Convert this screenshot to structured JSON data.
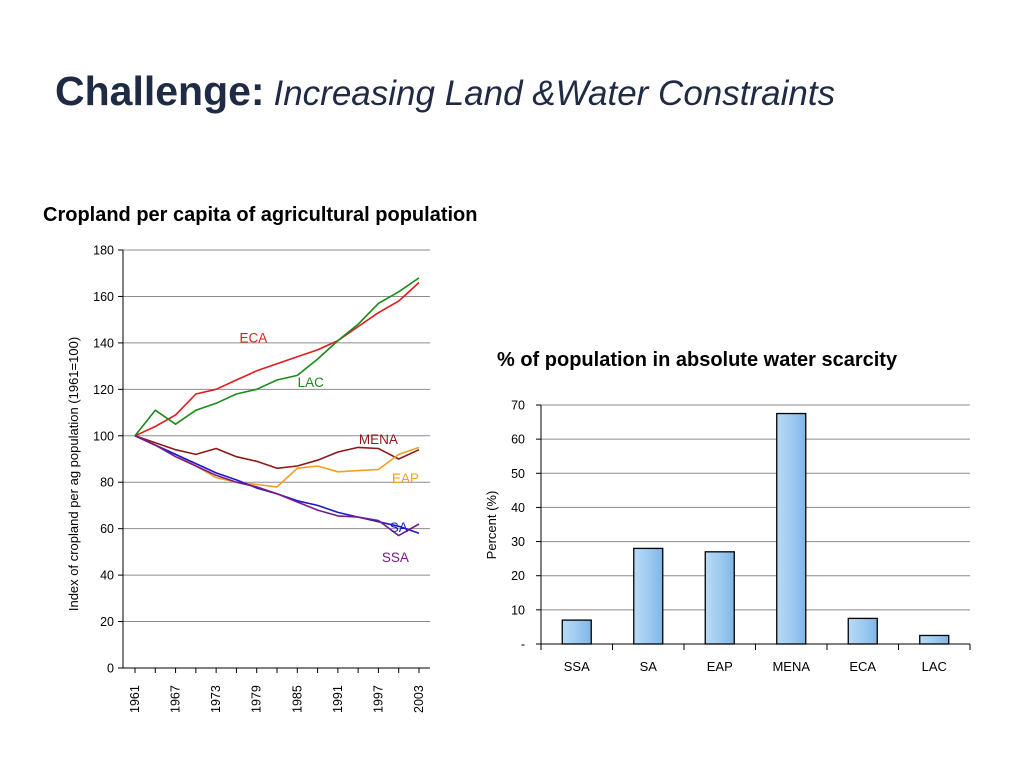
{
  "slide": {
    "title_main": "Challenge:",
    "title_sub": "Increasing Land &Water Constraints"
  },
  "chart_data": [
    {
      "type": "line",
      "title": "Cropland per capita of agricultural population",
      "xlabel": "",
      "ylabel": "Index of cropland per ag population (1961=100)",
      "ylim": [
        0,
        180
      ],
      "xlim": [
        1961,
        2003
      ],
      "yticks": [
        0,
        20,
        40,
        60,
        80,
        100,
        120,
        140,
        160,
        180
      ],
      "xticks": [
        "1961",
        "1967",
        "1973",
        "1979",
        "1985",
        "1991",
        "1997",
        "2003"
      ],
      "grid": true,
      "legend": "inline labels",
      "x": [
        1961,
        1964,
        1967,
        1970,
        1973,
        1976,
        1979,
        1982,
        1985,
        1988,
        1991,
        1994,
        1997,
        2000,
        2003
      ],
      "series": [
        {
          "name": "ECA",
          "color": "#e31a1c",
          "values": [
            100,
            104,
            109,
            118,
            120,
            124,
            128,
            131,
            134,
            137,
            141,
            147,
            153,
            158,
            166
          ]
        },
        {
          "name": "LAC",
          "color": "#1a8a1a",
          "values": [
            100,
            111,
            105,
            111,
            114,
            118,
            120,
            124,
            126,
            133,
            141,
            148,
            157,
            162,
            168
          ]
        },
        {
          "name": "MENA",
          "color": "#8b1a1a",
          "values": [
            100,
            97,
            94,
            92,
            94.5,
            91,
            89,
            86,
            87,
            89.5,
            93,
            95,
            94.5,
            90,
            94
          ]
        },
        {
          "name": "EAP",
          "color": "#f0a020",
          "values": [
            100,
            96,
            92,
            87,
            82,
            80,
            79,
            78,
            86,
            87,
            84.5,
            85,
            85.5,
            92,
            95
          ]
        },
        {
          "name": "SA",
          "color": "#1a1acc",
          "values": [
            100,
            96,
            92,
            88,
            84,
            81,
            77.5,
            75,
            72,
            70,
            67,
            65,
            63,
            61,
            58
          ]
        },
        {
          "name": "SSA",
          "color": "#7a1a8a",
          "values": [
            100,
            96,
            91,
            87,
            83,
            80,
            78,
            75,
            71.5,
            68,
            65.5,
            65,
            63.5,
            57,
            62
          ]
        }
      ]
    },
    {
      "type": "bar",
      "title": "% of population in absolute water scarcity",
      "xlabel": "",
      "ylabel": "Percent (%)",
      "ylim": [
        0,
        70
      ],
      "yticks": [
        0,
        10,
        20,
        30,
        40,
        50,
        60,
        70
      ],
      "ytick_labels": [
        "-",
        "10",
        "20",
        "30",
        "40",
        "50",
        "60",
        "70"
      ],
      "grid": true,
      "categories": [
        "SSA",
        "SA",
        "EAP",
        "MENA",
        "ECA",
        "LAC"
      ],
      "values": [
        7,
        28,
        27,
        67.5,
        7.5,
        2.5
      ],
      "bar_color": "#9ecbf0"
    }
  ]
}
